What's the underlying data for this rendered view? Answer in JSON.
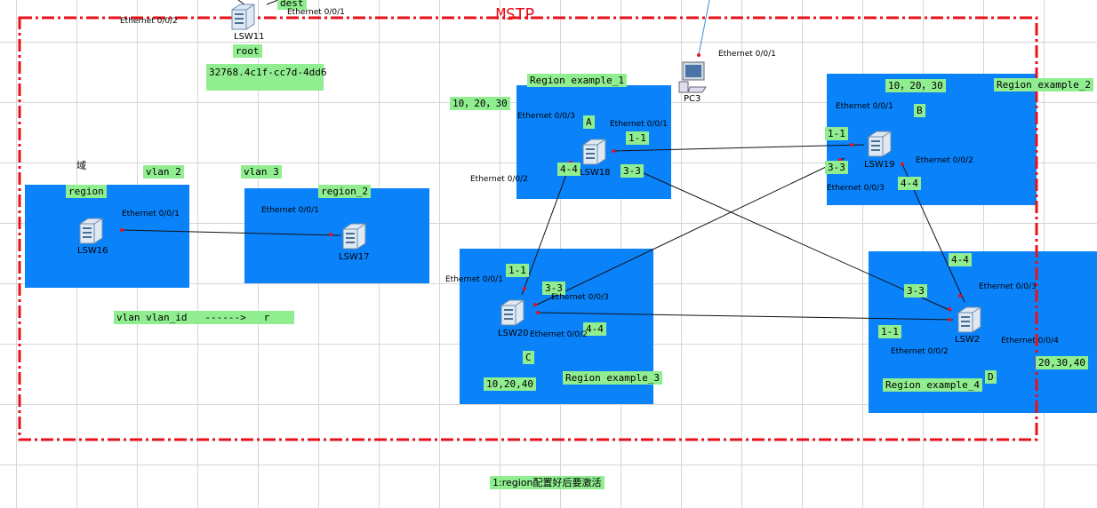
{
  "title": "MSTP",
  "note": "1:region配置好后要激活",
  "root_switch": {
    "tag": "dest",
    "ports": [
      "Ethernet 0/0/1",
      "Ethernet 0/0/2"
    ],
    "name": "LSW11",
    "role": "root",
    "bridge_id": "32768.4c1f-cc7d-4dd6"
  },
  "left_area": {
    "domain": "域",
    "vlans": [
      "vlan 2",
      "vlan 3"
    ],
    "regions": [
      {
        "name": "region",
        "port": "Ethernet 0/0/1",
        "switch": "LSW16"
      },
      {
        "name": "region_2",
        "port": "Ethernet 0/0/1",
        "switch": "LSW17"
      }
    ],
    "mapping_note": "vlan vlan_id   ------>   r"
  },
  "pc": {
    "port": "Ethernet 0/0/1",
    "name": "PC3"
  },
  "regions": [
    {
      "name": "Region example_1",
      "vlans": "10，20，30",
      "letter": "A",
      "switch": "LSW18",
      "ports": [
        "Ethernet 0/0/3",
        "Ethernet 0/0/1",
        "Ethernet 0/0/2"
      ],
      "instances": [
        "1-1",
        "4-4",
        "3-3"
      ]
    },
    {
      "name": "Region example_2",
      "vlans": "10，20，30",
      "letter": "B",
      "switch": "LSW19",
      "ports": [
        "Ethernet 0/0/1",
        "Ethernet 0/0/2",
        "Ethernet 0/0/3"
      ],
      "instances": [
        "1-1",
        "3-3",
        "4-4"
      ]
    },
    {
      "name": "Region example_3",
      "vlans": "10,20,40",
      "letter": "C",
      "switch": "LSW20",
      "ports": [
        "Ethernet 0/0/1",
        "Ethernet 0/0/3",
        "Ethernet 0/0/2"
      ],
      "instances": [
        "1-1",
        "3-3",
        "4-4"
      ]
    },
    {
      "name": "Region example_4",
      "vlans": "20,30,40",
      "letter": "D",
      "switch": "LSW2",
      "ports": [
        "Ethernet 0/0/3",
        "Ethernet 0/0/4",
        "Ethernet 0/0/2"
      ],
      "instances": [
        "4-4",
        "3-3",
        "1-1"
      ]
    }
  ]
}
